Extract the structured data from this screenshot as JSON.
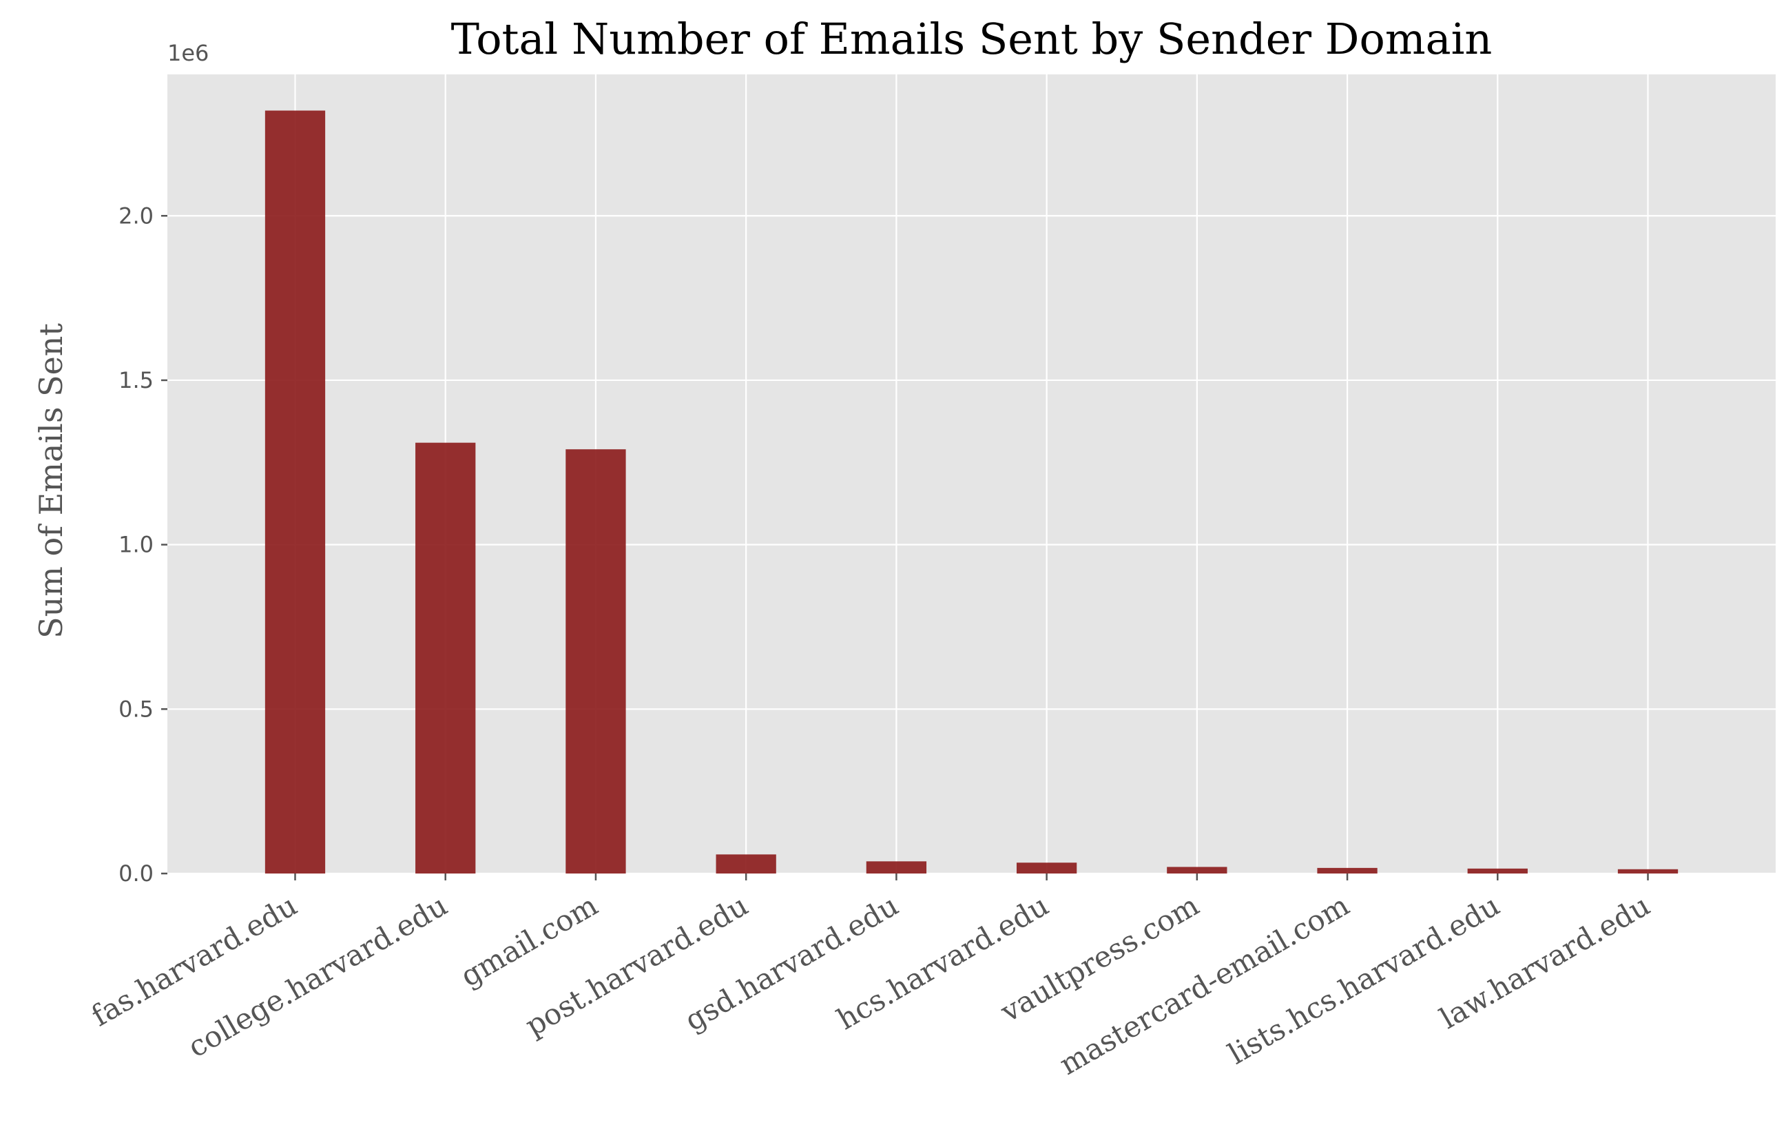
{
  "chart_data": {
    "type": "bar",
    "title": "Total Number of Emails Sent by Sender Domain",
    "xlabel": "",
    "ylabel": "Sum of Emails Sent",
    "y_offset_label": "1e6",
    "categories": [
      "fas.harvard.edu",
      "college.harvard.edu",
      "gmail.com",
      "post.harvard.edu",
      "gsd.harvard.edu",
      "hcs.harvard.edu",
      "vaultpress.com",
      "mastercard-email.com",
      "lists.hcs.harvard.edu",
      "law.harvard.edu"
    ],
    "values": [
      2320000,
      1310000,
      1290000,
      58000,
      37000,
      33000,
      20000,
      17000,
      15000,
      13000
    ],
    "ylim": [
      0,
      2430000
    ],
    "yticks": [
      0,
      500000,
      1000000,
      1500000,
      2000000
    ],
    "ytick_labels": [
      "0.0",
      "0.5",
      "1.0",
      "1.5",
      "2.0"
    ],
    "grid": true,
    "colors": {
      "bar": "#8b1a1a",
      "plot_background": "#e5e5e5",
      "grid": "#ffffff"
    }
  }
}
